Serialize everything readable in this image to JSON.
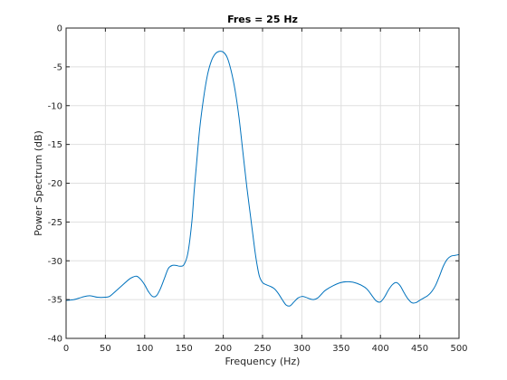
{
  "chart_data": {
    "type": "line",
    "title": "Fres = 25 Hz",
    "xlabel": "Frequency (Hz)",
    "ylabel": "Power Spectrum (dB)",
    "xlim": [
      0,
      500
    ],
    "ylim": [
      -40,
      0
    ],
    "xticks": [
      0,
      50,
      100,
      150,
      200,
      250,
      300,
      350,
      400,
      450,
      500
    ],
    "yticks": [
      0,
      -5,
      -10,
      -15,
      -20,
      -25,
      -30,
      -35,
      -40
    ],
    "grid": true,
    "series_color": "#0072bd",
    "x": [
      0,
      10,
      20,
      30,
      40,
      50,
      55,
      60,
      70,
      80,
      85,
      90,
      95,
      100,
      105,
      110,
      115,
      120,
      125,
      130,
      135,
      140,
      145,
      150,
      155,
      160,
      163,
      166,
      170,
      175,
      180,
      185,
      190,
      195,
      200,
      205,
      210,
      215,
      220,
      225,
      230,
      235,
      240,
      243,
      246,
      250,
      255,
      260,
      265,
      270,
      275,
      280,
      285,
      290,
      295,
      300,
      305,
      310,
      315,
      320,
      325,
      330,
      340,
      350,
      360,
      370,
      380,
      385,
      390,
      395,
      400,
      405,
      410,
      415,
      420,
      425,
      430,
      435,
      440,
      445,
      450,
      455,
      460,
      465,
      470,
      475,
      480,
      485,
      490,
      495,
      500
    ],
    "y": [
      -35.1,
      -35.0,
      -34.7,
      -34.5,
      -34.7,
      -34.7,
      -34.6,
      -34.2,
      -33.3,
      -32.4,
      -32.1,
      -32.0,
      -32.4,
      -33.1,
      -34.0,
      -34.6,
      -34.5,
      -33.6,
      -32.3,
      -31.0,
      -30.6,
      -30.6,
      -30.7,
      -30.5,
      -29.0,
      -25.0,
      -21.0,
      -17.5,
      -13.0,
      -9.0,
      -6.0,
      -4.2,
      -3.3,
      -3.0,
      -3.1,
      -3.8,
      -5.5,
      -8.0,
      -11.5,
      -16.0,
      -20.5,
      -24.5,
      -28.5,
      -30.5,
      -32.0,
      -32.8,
      -33.1,
      -33.3,
      -33.6,
      -34.2,
      -35.0,
      -35.7,
      -35.8,
      -35.3,
      -34.8,
      -34.6,
      -34.7,
      -34.9,
      -35.0,
      -34.8,
      -34.3,
      -33.8,
      -33.2,
      -32.8,
      -32.7,
      -32.9,
      -33.4,
      -33.9,
      -34.6,
      -35.2,
      -35.3,
      -34.7,
      -33.8,
      -33.1,
      -32.8,
      -33.2,
      -34.1,
      -34.9,
      -35.4,
      -35.4,
      -35.1,
      -34.8,
      -34.5,
      -34.0,
      -33.2,
      -32.0,
      -30.7,
      -29.8,
      -29.4,
      -29.3,
      -29.2
    ]
  }
}
